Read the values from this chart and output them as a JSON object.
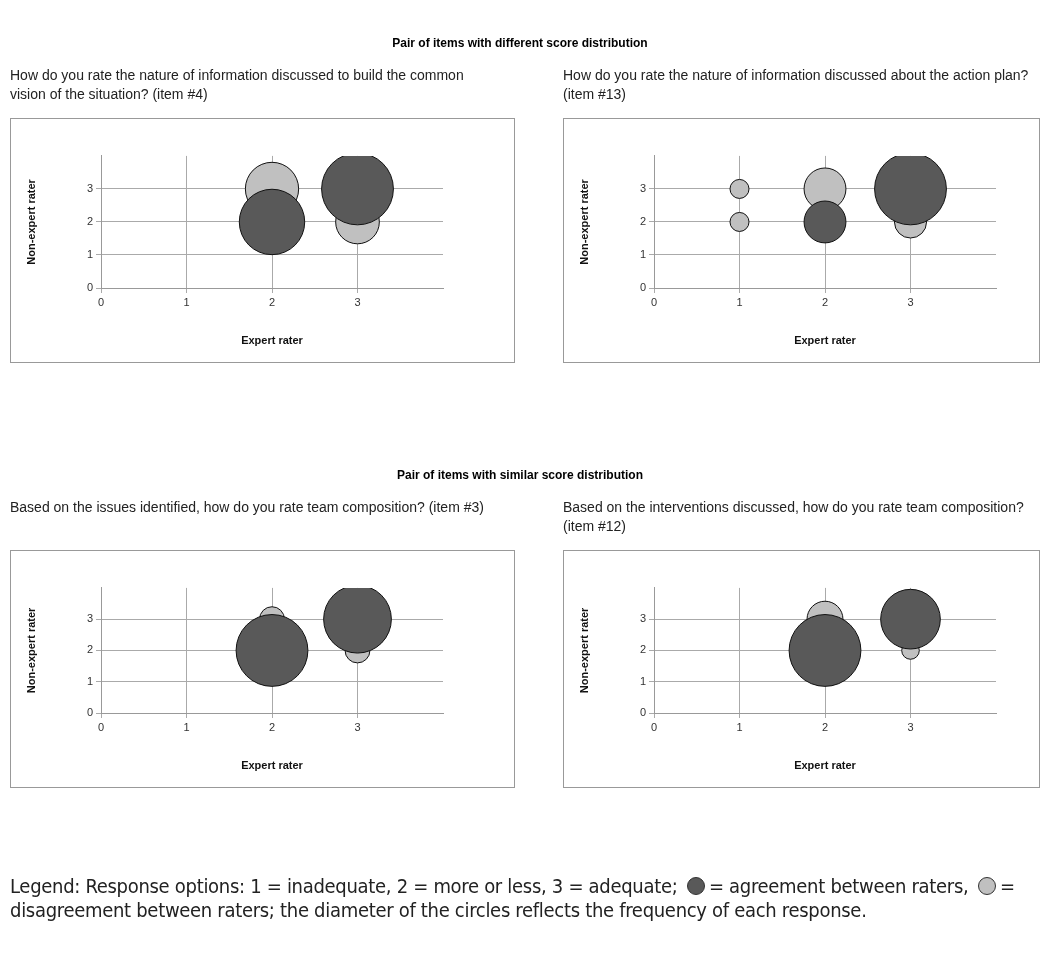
{
  "chart_data": [
    {
      "type": "bubble",
      "title": "How do you rate the nature of information discussed to build the common vision of the situation? (item #4)",
      "xlabel": "Expert rater",
      "ylabel": "Non-expert rater",
      "xlim": [
        0,
        4
      ],
      "ylim": [
        0,
        4
      ],
      "xticks": [
        0,
        1,
        2,
        3
      ],
      "yticks": [
        0,
        1,
        2,
        3
      ],
      "grid": true,
      "annotations": [
        "Pair of items with different score distribution"
      ],
      "series": [
        {
          "color": "#595959",
          "x": [
            2,
            3
          ],
          "values": [
            2,
            3
          ],
          "sizes": [
            0.83,
            1
          ]
        },
        {
          "color": "#c0c0c0",
          "x": [
            2,
            3
          ],
          "values": [
            3,
            2
          ],
          "sizes": [
            0.55,
            0.37
          ]
        }
      ]
    },
    {
      "type": "bubble",
      "title": "How do you rate the nature of information discussed about the action plan? (item #13)",
      "xlabel": "Expert rater",
      "ylabel": "Non-expert rater",
      "xlim": [
        0,
        4
      ],
      "ylim": [
        0,
        4
      ],
      "xticks": [
        0,
        1,
        2,
        3
      ],
      "yticks": [
        0,
        1,
        2,
        3
      ],
      "grid": true,
      "series": [
        {
          "color": "#595959",
          "x": [
            2,
            3
          ],
          "values": [
            2,
            3
          ],
          "sizes": [
            0.34,
            1
          ]
        },
        {
          "color": "#c0c0c0",
          "x": [
            1,
            1,
            2,
            3
          ],
          "values": [
            3,
            2,
            3,
            2
          ],
          "sizes": [
            0.07,
            0.07,
            0.34,
            0.2
          ]
        }
      ]
    },
    {
      "type": "bubble",
      "title": "Based on the issues identified, how do you rate team composition? (item #3)",
      "xlabel": "Expert rater",
      "ylabel": "Non-expert rater",
      "xlim": [
        0,
        4
      ],
      "ylim": [
        0,
        4
      ],
      "xticks": [
        0,
        1,
        2,
        3
      ],
      "yticks": [
        0,
        1,
        2,
        3
      ],
      "grid": true,
      "annotations": [
        "Pair of items with similar score distribution"
      ],
      "series": [
        {
          "color": "#595959",
          "x": [
            2,
            3
          ],
          "values": [
            2,
            3
          ],
          "sizes": [
            1,
            0.89
          ]
        },
        {
          "color": "#c0c0c0",
          "x": [
            2,
            3
          ],
          "values": [
            3,
            2
          ],
          "sizes": [
            0.12,
            0.12
          ]
        }
      ]
    },
    {
      "type": "bubble",
      "title": "Based on the interventions discussed, how do you rate team composition? (item #12)",
      "xlabel": "Expert rater",
      "ylabel": "Non-expert rater",
      "xlim": [
        0,
        4
      ],
      "ylim": [
        0,
        4
      ],
      "xticks": [
        0,
        1,
        2,
        3
      ],
      "yticks": [
        0,
        1,
        2,
        3
      ],
      "grid": true,
      "annotations": [
        "Legend: Response options: 1 = inadequate, 2 = more or less, 3 = adequate;",
        "= agreement between raters,",
        "= disagreement between raters; the diameter of the circles reflects the frequency of each response."
      ],
      "series": [
        {
          "color": "#595959",
          "x": [
            2,
            3
          ],
          "values": [
            2,
            3
          ],
          "sizes": [
            1,
            0.69
          ]
        },
        {
          "color": "#c0c0c0",
          "x": [
            2,
            3
          ],
          "values": [
            3,
            2
          ],
          "sizes": [
            0.25,
            0.06
          ]
        }
      ]
    }
  ]
}
